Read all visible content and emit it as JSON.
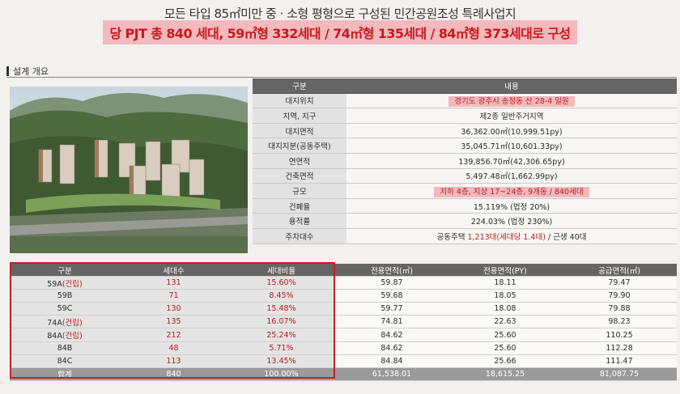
{
  "header": {
    "line1": "모든 타입 85㎡미만 중 · 소형 평형으로 구성된 민간공원조성 특례사업지",
    "line2": "당 PJT 총 840 세대, 59㎡형 332세대 / 74㎡형 135세대 / 84㎡형 373세대로 구성"
  },
  "section": {
    "title": "설계 개요"
  },
  "overview": {
    "head_label": "구분",
    "head_content": "내용",
    "rows": [
      {
        "label": "대지위치",
        "value": "경기도 광주시 송정동 산 28-4 일원",
        "highlight": true
      },
      {
        "label": "지역, 지구",
        "value": "제2종 일반주거지역"
      },
      {
        "label": "대지면적",
        "value": "36,362.00㎡(10,999.51py)"
      },
      {
        "label": "대지지분(공동주택)",
        "value": "35,045.71㎡(10,601.33py)"
      },
      {
        "label": "연면적",
        "value": "139,856.70㎡(42,306.65py)"
      },
      {
        "label": "건축면적",
        "value": "5,497.48㎡(1,662.99py)"
      },
      {
        "label": "규모",
        "value": "지하 4층, 지상 17~24층, 9개동 / 840세대",
        "highlight": true
      },
      {
        "label": "건폐율",
        "value": "15.119% (법정 20%)"
      },
      {
        "label": "용적률",
        "value": "224.03% (법정 230%)"
      },
      {
        "label": "주차대수",
        "value_pre": "공동주택 ",
        "value_red": "1,213대(세대당 1.4대)",
        "value_post": " / 근생 40대"
      }
    ]
  },
  "units": {
    "headers": [
      "구분",
      "세대수",
      "세대비율",
      "전용면적(㎡)",
      "전용면적(PY)",
      "공급면적(㎡)"
    ],
    "rows": [
      {
        "type": "59A",
        "tag": "(건립)",
        "count": "131",
        "ratio": "15.60%",
        "area_m2": "59.87",
        "area_py": "18.11",
        "supply": "79.47"
      },
      {
        "type": "59B",
        "tag": "",
        "count": "71",
        "ratio": "8.45%",
        "area_m2": "59.68",
        "area_py": "18.05",
        "supply": "79.90"
      },
      {
        "type": "59C",
        "tag": "",
        "count": "130",
        "ratio": "15.48%",
        "area_m2": "59.77",
        "area_py": "18.08",
        "supply": "79.88"
      },
      {
        "type": "74A",
        "tag": "(건립)",
        "count": "135",
        "ratio": "16.07%",
        "area_m2": "74.81",
        "area_py": "22.63",
        "supply": "98.23"
      },
      {
        "type": "84A",
        "tag": "(건립)",
        "count": "212",
        "ratio": "25.24%",
        "area_m2": "84.62",
        "area_py": "25.60",
        "supply": "110.25"
      },
      {
        "type": "84B",
        "tag": "",
        "count": "48",
        "ratio": "5.71%",
        "area_m2": "84.62",
        "area_py": "25.60",
        "supply": "112.28"
      },
      {
        "type": "84C",
        "tag": "",
        "count": "113",
        "ratio": "13.45%",
        "area_m2": "84.84",
        "area_py": "25.66",
        "supply": "111.47"
      }
    ],
    "total": {
      "type": "합계",
      "count": "840",
      "ratio": "100.00%",
      "area_m2": "61,538.01",
      "area_py": "18,615.25",
      "supply": "81,087.75"
    }
  }
}
